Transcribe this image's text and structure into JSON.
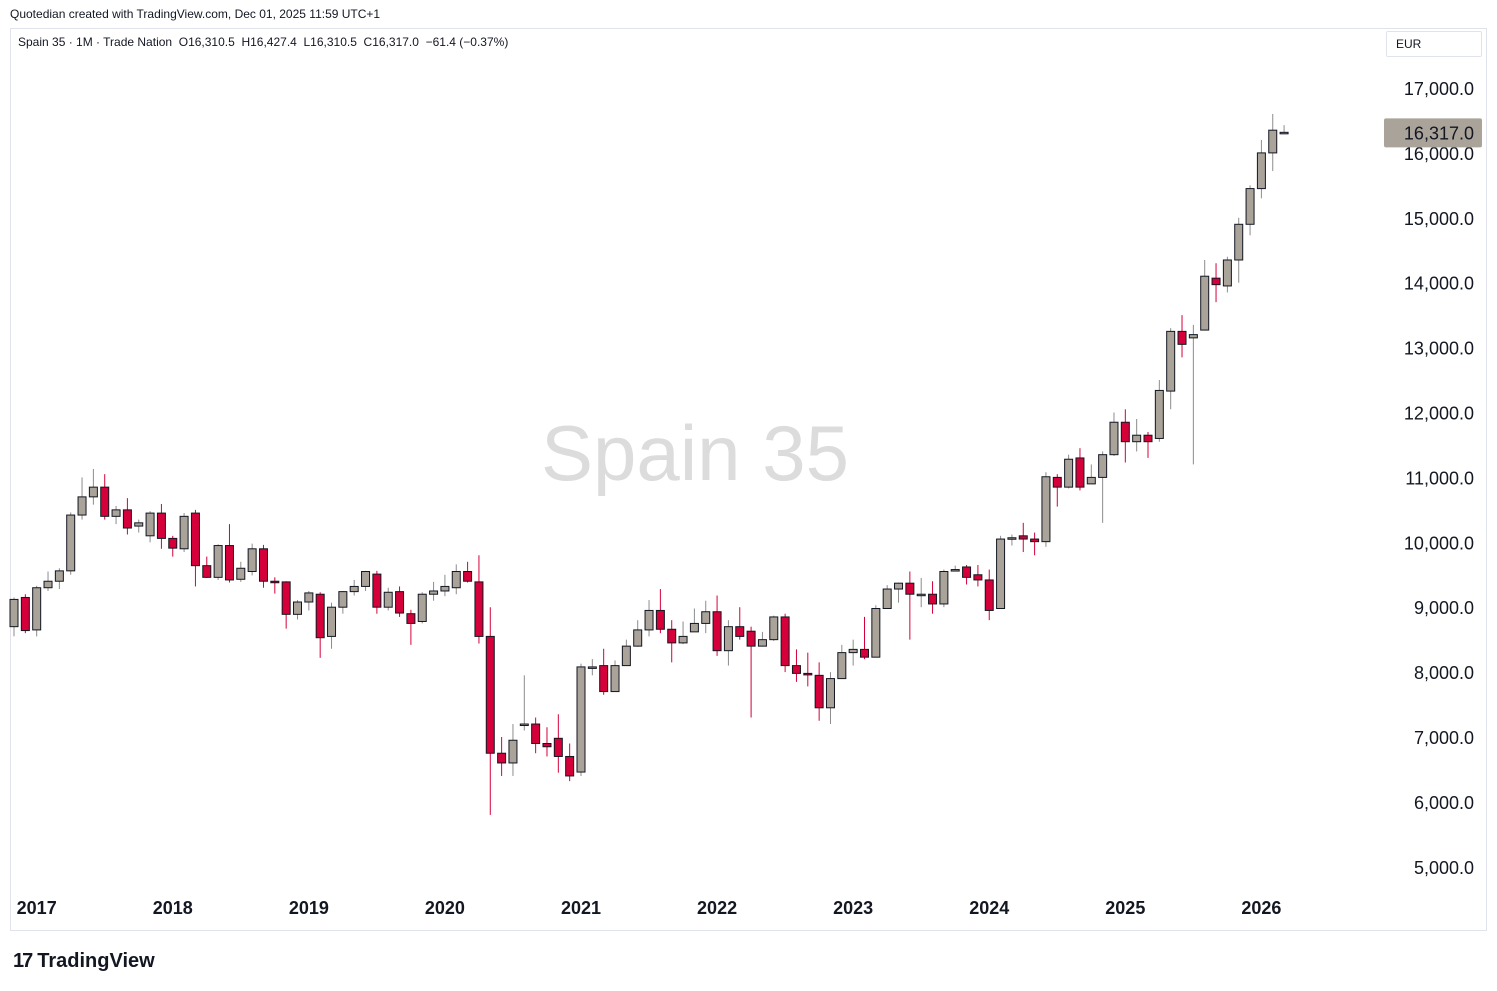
{
  "attribution": "Quotedian created with TradingView.com, Dec 01, 2025 11:59 UTC+1",
  "legend": "Spain 35 · 1M · Trade Nation  O16,310.5  H16,427.4  L16,310.5  C16,317.0  −61.4 (−0.37%)",
  "currency": "EUR",
  "watermark": "Spain 35",
  "footer": {
    "logo_mark": "17",
    "brand": "TradingView"
  },
  "colors": {
    "up": "#aaa39a",
    "down": "#d5003a",
    "outline": "#131722",
    "price_label": "#aaa39a"
  },
  "chart_data": {
    "type": "candlestick",
    "title": "Spain 35",
    "interval": "1M",
    "ylim": [
      4700,
      17600
    ],
    "y_ticks": [
      5000,
      6000,
      7000,
      8000,
      9000,
      10000,
      11000,
      12000,
      13000,
      14000,
      15000,
      16000,
      17000
    ],
    "y_tick_labels": [
      "5,000.0",
      "6,000.0",
      "7,000.0",
      "8,000.0",
      "9,000.0",
      "10,000.0",
      "11,000.0",
      "12,000.0",
      "13,000.0",
      "14,000.0",
      "15,000.0",
      "16,000.0",
      "17,000.0"
    ],
    "x_labels": [
      "2017",
      "2018",
      "2019",
      "2020",
      "2021",
      "2022",
      "2023",
      "2024",
      "2025",
      "2026"
    ],
    "last_price_label": "16,317.0",
    "start": "2016-11",
    "candles": [
      [
        8700,
        9120,
        8550,
        9150
      ],
      [
        9150,
        8640,
        8600,
        9200
      ],
      [
        8650,
        9300,
        8550,
        9330
      ],
      [
        9300,
        9400,
        9250,
        9550
      ],
      [
        9400,
        9560,
        9280,
        9600
      ],
      [
        9560,
        10420,
        9500,
        10460
      ],
      [
        10420,
        10700,
        10350,
        11000
      ],
      [
        10700,
        10850,
        10580,
        11130
      ],
      [
        10850,
        10400,
        10350,
        11050
      ],
      [
        10400,
        10500,
        10280,
        10560
      ],
      [
        10500,
        10220,
        10120,
        10680
      ],
      [
        10250,
        10300,
        10150,
        10350
      ],
      [
        10100,
        10450,
        10000,
        10480
      ],
      [
        10450,
        10060,
        9900,
        10590
      ],
      [
        10060,
        9910,
        9780,
        10100
      ],
      [
        9900,
        10400,
        9850,
        10450
      ],
      [
        10450,
        9640,
        9320,
        10500
      ],
      [
        9640,
        9460,
        9450,
        9780
      ],
      [
        9460,
        9950,
        9420,
        9970
      ],
      [
        9950,
        9420,
        9380,
        10280
      ],
      [
        9430,
        9600,
        9390,
        9700
      ],
      [
        9550,
        9900,
        9490,
        9980
      ],
      [
        9900,
        9400,
        9300,
        9960
      ],
      [
        9400,
        9390,
        9210,
        9460
      ],
      [
        9390,
        8890,
        8670,
        9400
      ],
      [
        8890,
        9080,
        8810,
        9110
      ],
      [
        9080,
        9220,
        8950,
        9250
      ],
      [
        9200,
        8530,
        8220,
        9230
      ],
      [
        8550,
        9000,
        8360,
        9070
      ],
      [
        9000,
        9240,
        8900,
        9250
      ],
      [
        9240,
        9320,
        9180,
        9420
      ],
      [
        9320,
        9550,
        9250,
        9560
      ],
      [
        9510,
        9000,
        8900,
        9560
      ],
      [
        9000,
        9230,
        8950,
        9300
      ],
      [
        9240,
        8910,
        8850,
        9320
      ],
      [
        8900,
        8750,
        8420,
        8960
      ],
      [
        8780,
        9200,
        8750,
        9230
      ],
      [
        9200,
        9250,
        9100,
        9390
      ],
      [
        9250,
        9320,
        9170,
        9500
      ],
      [
        9300,
        9550,
        9200,
        9660
      ],
      [
        9550,
        9400,
        9380,
        9700
      ],
      [
        9390,
        8550,
        8440,
        9800
      ],
      [
        8550,
        6750,
        5800,
        9000
      ],
      [
        6750,
        6600,
        6400,
        7000
      ],
      [
        6600,
        6950,
        6400,
        7200
      ],
      [
        7200,
        7200,
        7100,
        7950
      ],
      [
        7200,
        6900,
        6750,
        7300
      ],
      [
        6900,
        6850,
        6700,
        7150
      ],
      [
        6980,
        6700,
        6450,
        7350
      ],
      [
        6700,
        6400,
        6320,
        6900
      ],
      [
        6460,
        8080,
        6400,
        8130
      ],
      [
        8080,
        8080,
        7950,
        8200
      ],
      [
        8100,
        7700,
        7650,
        8360
      ],
      [
        7700,
        8100,
        7700,
        8180
      ],
      [
        8100,
        8400,
        8150,
        8500
      ],
      [
        8400,
        8650,
        8390,
        8800
      ],
      [
        8650,
        8950,
        8550,
        9110
      ],
      [
        8950,
        8660,
        8600,
        9280
      ],
      [
        8660,
        8450,
        8150,
        8800
      ],
      [
        8450,
        8550,
        8430,
        8780
      ],
      [
        8620,
        8750,
        8650,
        8980
      ],
      [
        8750,
        8930,
        8600,
        9100
      ],
      [
        8930,
        8330,
        8250,
        9180
      ],
      [
        8330,
        8700,
        8100,
        8800
      ],
      [
        8700,
        8550,
        8500,
        9000
      ],
      [
        8630,
        8400,
        7300,
        8700
      ],
      [
        8400,
        8500,
        8400,
        8620
      ],
      [
        8500,
        8850,
        8480,
        8870
      ],
      [
        8850,
        8100,
        8000,
        8900
      ],
      [
        8100,
        7980,
        7850,
        8350
      ],
      [
        7980,
        7960,
        7780,
        8300
      ],
      [
        7950,
        7450,
        7250,
        8150
      ],
      [
        7450,
        7900,
        7200,
        8000
      ],
      [
        7900,
        8300,
        7900,
        8420
      ],
      [
        8300,
        8350,
        8100,
        8500
      ],
      [
        8350,
        8230,
        8200,
        8850
      ],
      [
        8230,
        8980,
        8230,
        9030
      ],
      [
        8980,
        9280,
        9040,
        9340
      ],
      [
        9280,
        9370,
        9070,
        9380
      ],
      [
        9370,
        9200,
        8500,
        9550
      ],
      [
        9200,
        9200,
        9000,
        9450
      ],
      [
        9200,
        9050,
        8900,
        9400
      ],
      [
        9050,
        9550,
        9000,
        9580
      ],
      [
        9560,
        9580,
        9550,
        9640
      ],
      [
        9620,
        9460,
        9350,
        9650
      ],
      [
        9500,
        9420,
        9320,
        9650
      ],
      [
        9420,
        8950,
        8800,
        9580
      ],
      [
        8980,
        10050,
        8990,
        10100
      ],
      [
        10050,
        10070,
        9950,
        10120
      ],
      [
        10100,
        10050,
        9850,
        10300
      ],
      [
        10050,
        10010,
        9800,
        10150
      ],
      [
        10010,
        11010,
        9930,
        11080
      ],
      [
        11000,
        10850,
        10550,
        11050
      ],
      [
        10850,
        11280,
        10830,
        11350
      ],
      [
        11300,
        10850,
        10800,
        11450
      ],
      [
        10900,
        11000,
        10900,
        11200
      ],
      [
        11000,
        11350,
        10300,
        11400
      ],
      [
        11350,
        11850,
        11330,
        12000
      ],
      [
        11850,
        11550,
        11230,
        12050
      ],
      [
        11550,
        11650,
        11400,
        11900
      ],
      [
        11650,
        11550,
        11300,
        11700
      ],
      [
        11600,
        12340,
        11550,
        12500
      ],
      [
        12330,
        13250,
        12050,
        13300
      ],
      [
        13250,
        13050,
        12850,
        13500
      ],
      [
        13150,
        13200,
        11200,
        13350
      ],
      [
        13270,
        14100,
        13300,
        14350
      ],
      [
        14070,
        13970,
        13700,
        14300
      ],
      [
        13950,
        14350,
        13850,
        14400
      ],
      [
        14350,
        14900,
        14000,
        15000
      ],
      [
        14900,
        15450,
        14730,
        15500
      ],
      [
        15450,
        16000,
        15300,
        16200
      ],
      [
        16000,
        16350,
        15720,
        16600
      ],
      [
        16310,
        16317,
        16310,
        16427
      ]
    ]
  }
}
